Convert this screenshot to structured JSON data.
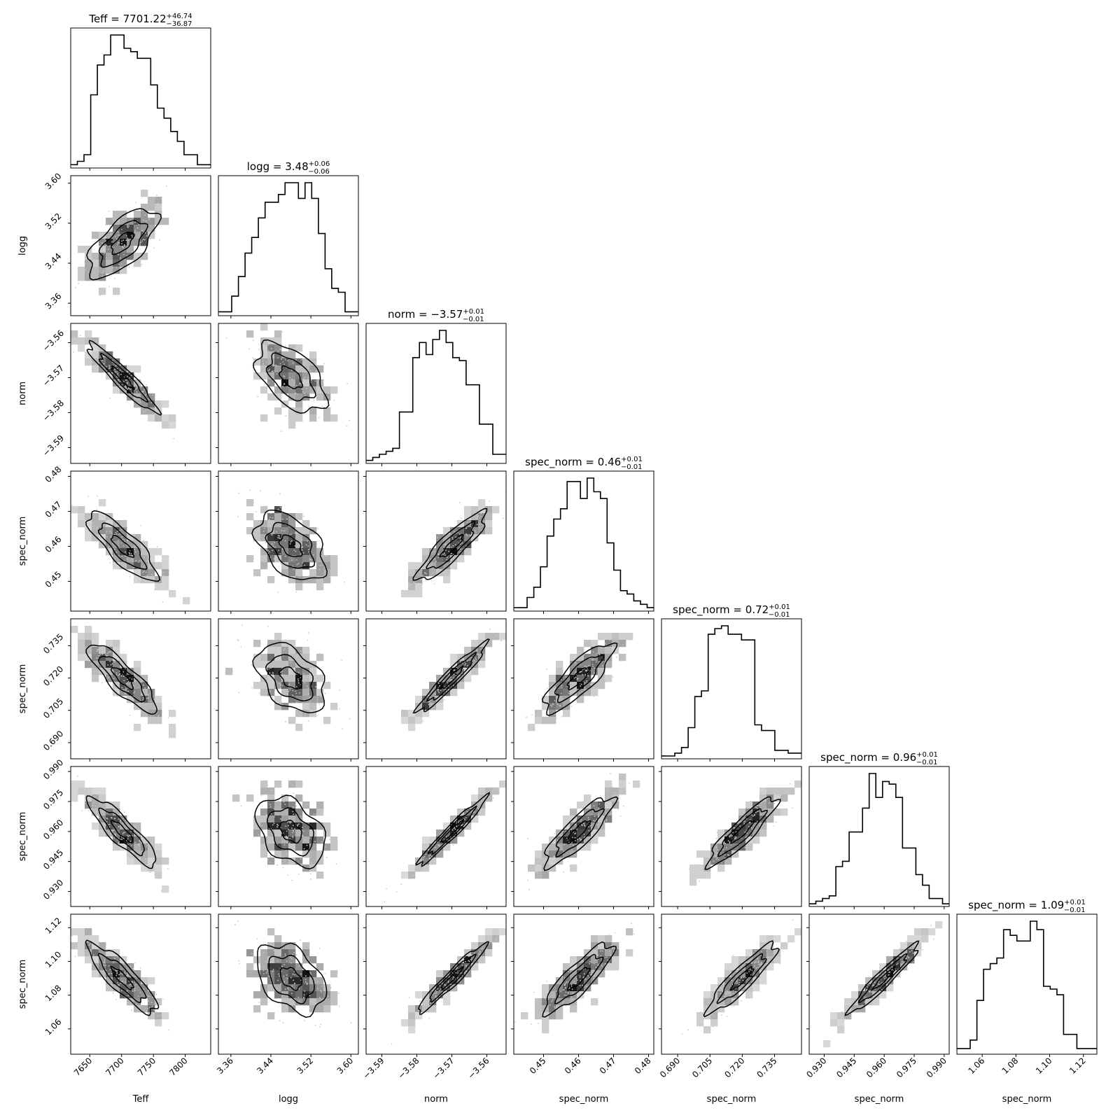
{
  "chart_data": {
    "type": "corner",
    "parameters": [
      {
        "label": "Teff",
        "title": "Teff = 7701.22",
        "median": 7701.22,
        "err_plus": "+46.74",
        "err_minus": "−36.87",
        "range": [
          7620,
          7840
        ],
        "ticks": [
          7650,
          7700,
          7750,
          7800
        ],
        "tick_labels": [
          "7650",
          "7700",
          "7750",
          "7800"
        ],
        "hist": [
          1,
          2,
          4,
          22,
          31,
          34,
          40,
          40,
          36,
          35,
          33,
          33,
          25,
          18,
          15,
          11,
          8,
          4,
          4,
          1,
          1
        ]
      },
      {
        "label": "logg",
        "title": "logg = 3.48",
        "median": 3.48,
        "err_plus": "+0.06",
        "err_minus": "−0.06",
        "range": [
          3.335,
          3.615
        ],
        "ticks": [
          3.36,
          3.44,
          3.52,
          3.6
        ],
        "tick_labels": [
          "3.36",
          "3.44",
          "3.52",
          "3.60"
        ],
        "hist": [
          1,
          1,
          5,
          10,
          16,
          20,
          25,
          29,
          29,
          31,
          34,
          34,
          30,
          34,
          30,
          21,
          12,
          7,
          6,
          1,
          1
        ]
      },
      {
        "label": "norm",
        "title": "norm = −3.57",
        "median": -3.57,
        "err_plus": "+0.01",
        "err_minus": "−0.01",
        "range": [
          -3.5945,
          -3.5545
        ],
        "ticks": [
          -3.59,
          -3.58,
          -3.57,
          -3.56
        ],
        "tick_labels": [
          "−3.59",
          "−3.58",
          "−3.57",
          "−3.56"
        ],
        "hist": [
          1,
          2,
          3,
          4,
          5,
          17,
          17,
          35,
          40,
          36,
          41,
          44,
          40,
          35,
          34,
          26,
          26,
          13,
          13,
          3,
          3
        ]
      },
      {
        "label": "spec_norm",
        "title": "spec_norm = 0.46",
        "median": 0.46,
        "err_plus": "+0.01",
        "err_minus": "−0.01",
        "range": [
          0.4415,
          0.4815
        ],
        "ticks": [
          0.45,
          0.46,
          0.47,
          0.48
        ],
        "tick_labels": [
          "0.45",
          "0.46",
          "0.47",
          "0.48"
        ],
        "hist": [
          1,
          1,
          4,
          7,
          13,
          22,
          27,
          30,
          38,
          38,
          33,
          39,
          35,
          33,
          20,
          12,
          6,
          5,
          3,
          2,
          1
        ]
      },
      {
        "label": "spec_norm",
        "title": "spec_norm = 0.72",
        "median": 0.72,
        "err_plus": "+0.01",
        "err_minus": "−0.01",
        "range": [
          0.6825,
          0.7475
        ],
        "ticks": [
          0.69,
          0.705,
          0.72,
          0.735
        ],
        "tick_labels": [
          "0.690",
          "0.705",
          "0.720",
          "0.735"
        ],
        "hist": [
          1,
          1,
          2,
          4,
          11,
          22,
          24,
          44,
          46,
          47,
          44,
          44,
          42,
          42,
          12,
          10,
          10,
          3,
          3,
          2,
          2
        ]
      },
      {
        "label": "spec_norm",
        "title": "spec_norm = 0.96",
        "median": 0.96,
        "err_plus": "+0.01",
        "err_minus": "−0.01",
        "range": [
          0.9225,
          0.9925
        ],
        "ticks": [
          0.93,
          0.945,
          0.96,
          0.975,
          0.99
        ],
        "tick_labels": [
          "0.930",
          "0.945",
          "0.960",
          "0.975",
          "0.990"
        ],
        "hist": [
          1,
          2,
          3,
          4,
          15,
          17,
          28,
          28,
          37,
          50,
          41,
          47,
          46,
          41,
          22,
          22,
          12,
          8,
          3,
          3,
          1
        ]
      },
      {
        "label": "spec_norm",
        "title": "spec_norm = 1.09",
        "median": 1.09,
        "err_plus": "+0.01",
        "err_minus": "−0.01",
        "range": [
          1.045,
          1.128
        ],
        "ticks": [
          1.06,
          1.08,
          1.1,
          1.12
        ],
        "tick_labels": [
          "1.06",
          "1.08",
          "1.10",
          "1.12"
        ],
        "hist": [
          2,
          2,
          5,
          19,
          30,
          32,
          34,
          44,
          42,
          40,
          40,
          47,
          44,
          24,
          23,
          21,
          7,
          7,
          2,
          2,
          2
        ]
      }
    ],
    "correlations": [
      [
        1,
        0.65,
        -0.93,
        -0.82,
        -0.85,
        -0.88,
        -0.86
      ],
      [
        0.65,
        1,
        -0.5,
        -0.45,
        -0.45,
        -0.4,
        -0.4
      ],
      [
        -0.93,
        -0.5,
        1,
        0.88,
        0.95,
        0.97,
        0.96
      ],
      [
        -0.82,
        -0.45,
        0.88,
        1,
        0.82,
        0.85,
        0.85
      ],
      [
        -0.85,
        -0.45,
        0.95,
        0.82,
        1,
        0.9,
        0.9
      ],
      [
        -0.88,
        -0.4,
        0.97,
        0.85,
        0.9,
        1,
        0.95
      ],
      [
        -0.86,
        -0.4,
        0.96,
        0.85,
        0.9,
        0.95,
        1
      ]
    ],
    "legend": "none"
  }
}
